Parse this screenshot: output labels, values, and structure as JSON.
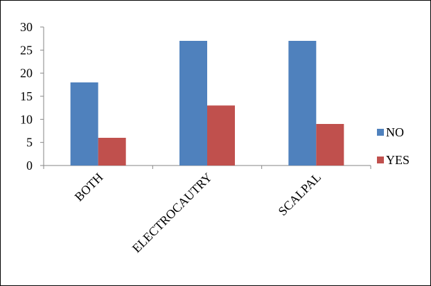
{
  "chart_data": {
    "type": "bar",
    "title": "",
    "xlabel": "",
    "ylabel": "",
    "categories": [
      "BOTH",
      "ELECTROCAUTRY",
      "SCALPAL"
    ],
    "series": [
      {
        "name": "NO",
        "values": [
          18,
          27,
          27
        ],
        "color": "#4F81BD"
      },
      {
        "name": "YES",
        "values": [
          6,
          13,
          9
        ],
        "color": "#C0504D"
      }
    ],
    "ylim": [
      0,
      30
    ],
    "yticks": [
      "0",
      "5",
      "10",
      "15",
      "20",
      "25",
      "30"
    ],
    "grid": false,
    "legend_position": "right"
  }
}
